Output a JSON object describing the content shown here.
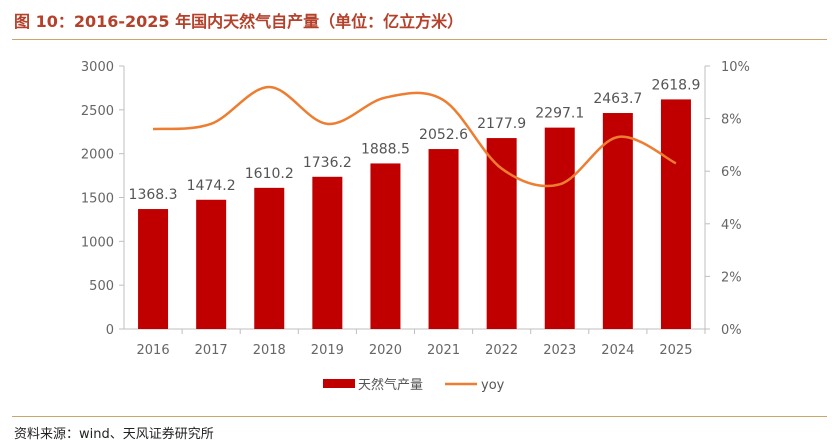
{
  "title": "图 10：2016-2025 年国内天然气自产量（单位：亿立方米）",
  "source": "资料来源：wind、天风证券研究所",
  "colors": {
    "bar": "#c00000",
    "line": "#ed7d31",
    "accent_rule": "#c9a66b",
    "title": "#b4412b"
  },
  "chart_data": {
    "type": "bar",
    "categories": [
      "2016",
      "2017",
      "2018",
      "2019",
      "2020",
      "2021",
      "2022",
      "2023",
      "2024",
      "2025"
    ],
    "series": [
      {
        "name": "天然气产量",
        "type": "bar",
        "axis": "left",
        "values": [
          1368.3,
          1474.2,
          1610.2,
          1736.2,
          1888.5,
          2052.6,
          2177.9,
          2297.1,
          2463.7,
          2618.9
        ]
      },
      {
        "name": "yoy",
        "type": "line",
        "axis": "right",
        "unit": "%",
        "values": [
          7.6,
          7.8,
          9.2,
          7.8,
          8.8,
          8.7,
          6.1,
          5.5,
          7.3,
          6.3
        ]
      }
    ],
    "y_left": {
      "lim": [
        0,
        3000
      ],
      "ticks": [
        "0",
        "500",
        "1000",
        "1500",
        "2000",
        "2500",
        "3000"
      ]
    },
    "y_right": {
      "lim": [
        0,
        10
      ],
      "ticks": [
        "0%",
        "2%",
        "4%",
        "6%",
        "8%",
        "10%"
      ]
    },
    "data_labels": [
      "1368.3",
      "1474.2",
      "1610.2",
      "1736.2",
      "1888.5",
      "2052.6",
      "2177.9",
      "2297.1",
      "2463.7",
      "2618.9"
    ],
    "legend": {
      "position": "bottom",
      "entries": [
        "天然气产量",
        "yoy"
      ]
    },
    "grid": false
  }
}
